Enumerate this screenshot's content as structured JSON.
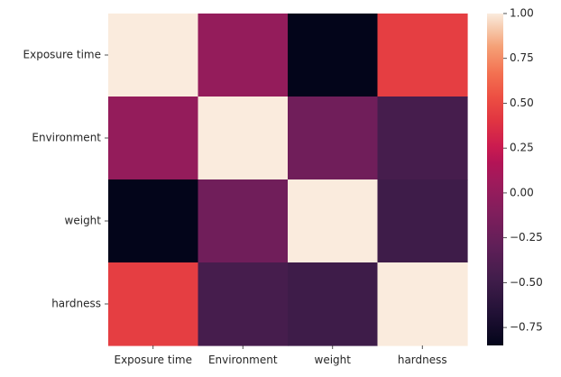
{
  "chart_data": {
    "type": "heatmap",
    "rows": [
      "Exposure time",
      "Environment",
      "weight",
      "hardness"
    ],
    "columns": [
      "Exposure time",
      "Environment",
      "weight",
      "hardness"
    ],
    "values": [
      [
        1.0,
        0.0,
        -0.85,
        0.45
      ],
      [
        0.0,
        1.0,
        -0.2,
        -0.45
      ],
      [
        -0.85,
        -0.2,
        1.0,
        -0.5
      ],
      [
        0.45,
        -0.45,
        -0.5,
        1.0
      ]
    ],
    "colorbar": {
      "min": -0.85,
      "max": 1.0,
      "ticks": [
        "1.00",
        "0.75",
        "0.50",
        "0.25",
        "0.00",
        "−0.25",
        "−0.50",
        "−0.75"
      ],
      "tick_values": [
        1.0,
        0.75,
        0.5,
        0.25,
        0.0,
        -0.25,
        -0.5,
        -0.75
      ]
    },
    "colormap": "rocket",
    "title": "",
    "xlabel": "",
    "ylabel": ""
  }
}
